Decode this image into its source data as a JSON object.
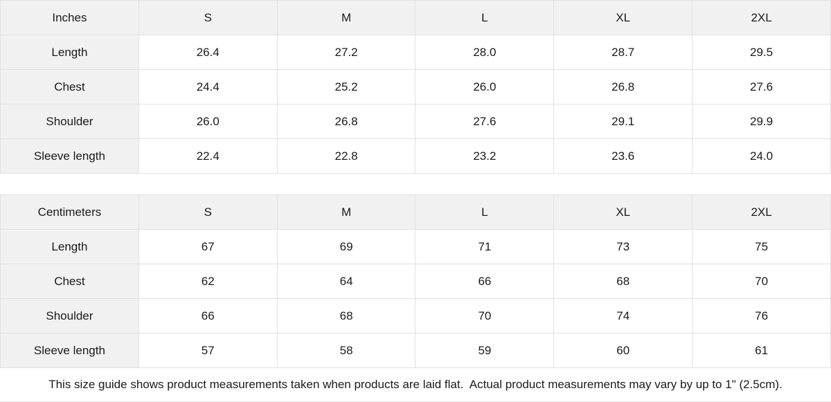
{
  "tables": [
    {
      "unit_label": "Inches",
      "columns": [
        "S",
        "M",
        "L",
        "XL",
        "2XL"
      ],
      "rows": [
        {
          "label": "Length",
          "values": [
            "26.4",
            "27.2",
            "28.0",
            "28.7",
            "29.5"
          ]
        },
        {
          "label": "Chest",
          "values": [
            "24.4",
            "25.2",
            "26.0",
            "26.8",
            "27.6"
          ]
        },
        {
          "label": "Shoulder",
          "values": [
            "26.0",
            "26.8",
            "27.6",
            "29.1",
            "29.9"
          ]
        },
        {
          "label": "Sleeve length",
          "values": [
            "22.4",
            "22.8",
            "23.2",
            "23.6",
            "24.0"
          ]
        }
      ]
    },
    {
      "unit_label": "Centimeters",
      "columns": [
        "S",
        "M",
        "L",
        "XL",
        "2XL"
      ],
      "rows": [
        {
          "label": "Length",
          "values": [
            "67",
            "69",
            "71",
            "73",
            "75"
          ]
        },
        {
          "label": "Chest",
          "values": [
            "62",
            "64",
            "66",
            "68",
            "70"
          ]
        },
        {
          "label": "Shoulder",
          "values": [
            "66",
            "68",
            "70",
            "74",
            "76"
          ]
        },
        {
          "label": "Sleeve length",
          "values": [
            "57",
            "58",
            "59",
            "60",
            "61"
          ]
        }
      ]
    }
  ],
  "footer": {
    "note": "This size guide shows product measurements taken when products are laid flat.  Actual product measurements may vary by up to 1\" (2.5cm)."
  },
  "colors": {
    "header_bg": "#f1f1f1",
    "border": "#e1e1e1",
    "text": "#1a1a1a",
    "background": "#ffffff"
  }
}
